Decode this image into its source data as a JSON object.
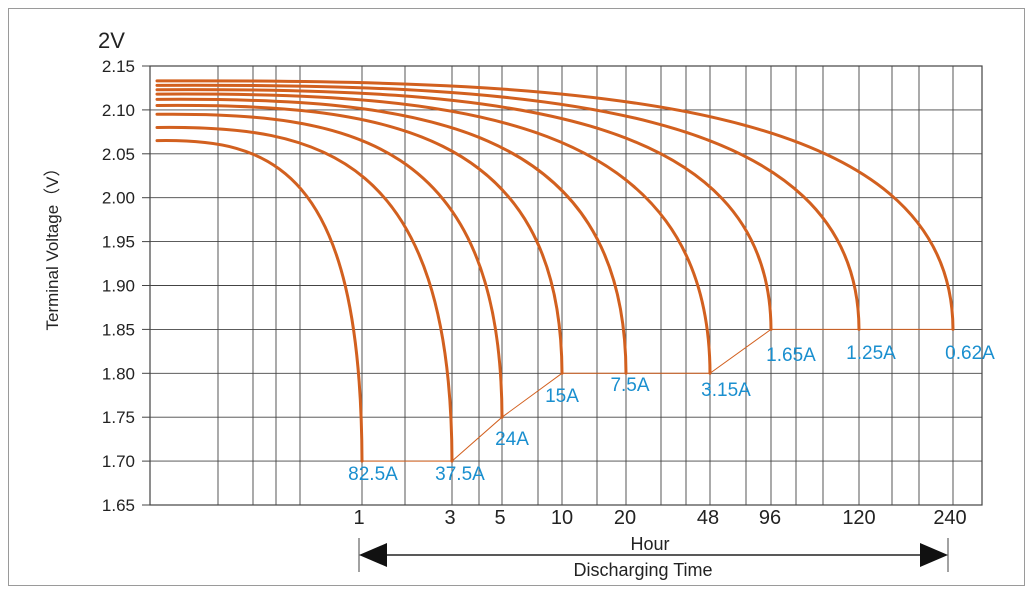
{
  "chart_data": {
    "type": "line",
    "unit_label": "2V",
    "ylabel": "Terminal Voltage（V）",
    "xlabel_1": "Hour",
    "xlabel_2": "Discharging Time",
    "ylim": [
      1.65,
      2.15
    ],
    "y_ticks": [
      "2.15",
      "2.10",
      "2.05",
      "2.00",
      "1.95",
      "1.90",
      "1.85",
      "1.80",
      "1.75",
      "1.70",
      "1.65"
    ],
    "x_ticks": [
      "1",
      "3",
      "5",
      "10",
      "20",
      "48",
      "96",
      "120",
      "240"
    ],
    "grid": true,
    "colors": {
      "curve": "#d2601f",
      "label": "#1a8fcf",
      "grid": "#444444"
    },
    "series": [
      {
        "name": "82.5A",
        "end_hour": 1,
        "start_voltage": 2.065,
        "end_voltage": 1.7
      },
      {
        "name": "37.5A",
        "end_hour": 3,
        "start_voltage": 2.08,
        "end_voltage": 1.7
      },
      {
        "name": "24A",
        "end_hour": 5,
        "start_voltage": 2.095,
        "end_voltage": 1.75
      },
      {
        "name": "15A",
        "end_hour": 10,
        "start_voltage": 2.105,
        "end_voltage": 1.8
      },
      {
        "name": "7.5A",
        "end_hour": 20,
        "start_voltage": 2.112,
        "end_voltage": 1.8
      },
      {
        "name": "3.15A",
        "end_hour": 48,
        "start_voltage": 2.118,
        "end_voltage": 1.8
      },
      {
        "name": "1.65A",
        "end_hour": 96,
        "start_voltage": 2.123,
        "end_voltage": 1.85
      },
      {
        "name": "1.25A",
        "end_hour": 120,
        "start_voltage": 2.128,
        "end_voltage": 1.85
      },
      {
        "name": "0.62A",
        "end_hour": 240,
        "start_voltage": 2.133,
        "end_voltage": 1.85
      }
    ]
  }
}
